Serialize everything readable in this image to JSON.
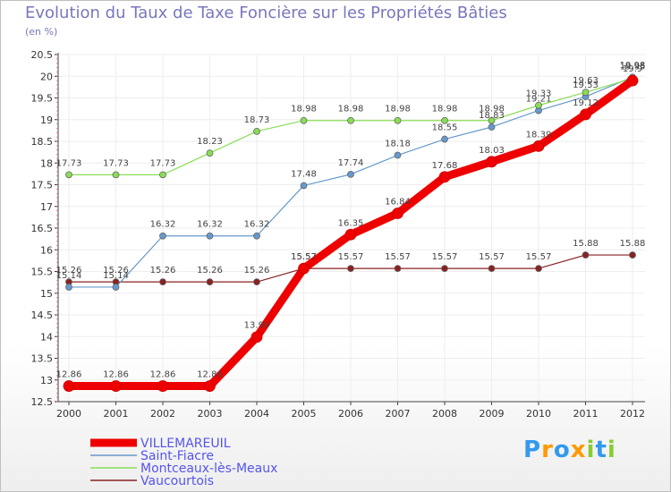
{
  "chart_data": {
    "type": "line",
    "title": "Evolution du Taux de Taxe Foncière sur les Propriétés Bâties",
    "unit_label": "(en %)",
    "categories": [
      "2000",
      "2001",
      "2002",
      "2003",
      "2004",
      "2005",
      "2006",
      "2007",
      "2008",
      "2009",
      "2010",
      "2011",
      "2012"
    ],
    "y_ticks": [
      "12.5",
      "13",
      "13.5",
      "14",
      "14.5",
      "15",
      "15.5",
      "16",
      "16.5",
      "17",
      "17.5",
      "18",
      "18.5",
      "19",
      "19.5",
      "20",
      "20.5"
    ],
    "ylim": [
      12.5,
      20.5
    ],
    "series": [
      {
        "name": "VILLEMAREUIL",
        "color": "#ee0000",
        "values": [
          12.86,
          12.86,
          12.86,
          12.86,
          13.99,
          15.57,
          16.35,
          16.84,
          17.68,
          18.03,
          18.39,
          19.12,
          19.9
        ],
        "labels": [
          "12.86",
          "12.86",
          "12.86",
          "12.86",
          "13.99",
          "15.57",
          "16.35",
          "16.84",
          "17.68",
          "18.03",
          "18.39",
          "19.12",
          "19.9"
        ]
      },
      {
        "name": "Saint-Fiacre",
        "color": "#6699cc",
        "values": [
          15.14,
          15.14,
          16.32,
          16.32,
          16.32,
          17.48,
          17.74,
          18.18,
          18.55,
          18.83,
          19.21,
          19.53,
          19.98
        ],
        "labels": [
          "15.14",
          "15.14",
          "16.32",
          "16.32",
          "16.32",
          "17.48",
          "17.74",
          "18.18",
          "18.55",
          "18.83",
          "19.21",
          "19.53",
          "19.98"
        ]
      },
      {
        "name": "Montceaux-lès-Meaux",
        "color": "#88dd55",
        "values": [
          17.73,
          17.73,
          17.73,
          18.23,
          18.73,
          18.98,
          18.98,
          18.98,
          18.98,
          18.98,
          19.33,
          19.63,
          19.95
        ],
        "labels": [
          "17.73",
          "17.73",
          "17.73",
          "18.23",
          "18.73",
          "18.98",
          "18.98",
          "18.98",
          "18.98",
          "18.98",
          "19.33",
          "19.63",
          "19.95"
        ]
      },
      {
        "name": "Vaucourtois",
        "color": "#882222",
        "values": [
          15.26,
          15.26,
          15.26,
          15.26,
          15.26,
          15.57,
          15.57,
          15.57,
          15.57,
          15.57,
          15.57,
          15.88,
          15.88
        ],
        "labels": [
          "15.26",
          "15.26",
          "15.26",
          "15.26",
          "15.26",
          "15.57",
          "15.57",
          "15.57",
          "15.57",
          "15.57",
          "15.57",
          "15.88",
          "15.88"
        ]
      }
    ],
    "legend_position": "bottom-left"
  },
  "logo": {
    "letters": [
      "P",
      "r",
      "o",
      "x",
      "i",
      "t",
      "i"
    ],
    "colors": [
      "#3399ee",
      "#ff9900",
      "#3399ee",
      "#ff9900",
      "#88cc33",
      "#3399ee",
      "#88cc33"
    ]
  }
}
